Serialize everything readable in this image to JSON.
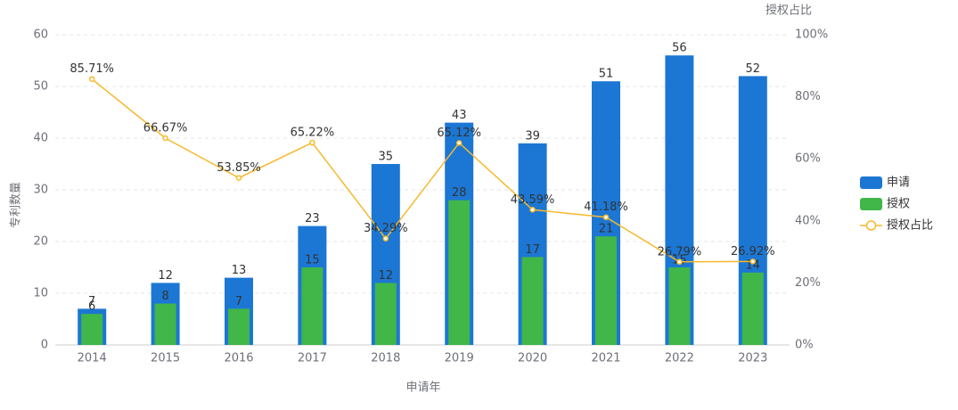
{
  "chart_data": {
    "type": "bar",
    "x_label": "申请年",
    "y_label": "专利数量",
    "y2_label": "授权占比",
    "categories": [
      "2014",
      "2015",
      "2016",
      "2017",
      "2018",
      "2019",
      "2020",
      "2021",
      "2022",
      "2023"
    ],
    "series": [
      {
        "name": "申请",
        "type": "bar",
        "color": "#1c77d4",
        "values": [
          7,
          12,
          13,
          23,
          35,
          43,
          39,
          51,
          56,
          52
        ]
      },
      {
        "name": "授权",
        "type": "bar",
        "color": "#41b649",
        "values": [
          6,
          8,
          7,
          15,
          12,
          28,
          17,
          21,
          15,
          14
        ]
      },
      {
        "name": "授权占比",
        "type": "line",
        "axis": "y2",
        "color": "#f6b92b",
        "values": [
          85.71,
          66.67,
          53.85,
          65.22,
          34.29,
          65.12,
          43.59,
          41.18,
          26.79,
          26.92
        ],
        "value_labels": [
          "85.71%",
          "66.67%",
          "53.85%",
          "65.22%",
          "34.29%",
          "65.12%",
          "43.59%",
          "41.18%",
          "26.79%",
          "26.92%"
        ]
      }
    ],
    "ylim": [
      0,
      60
    ],
    "yticks": [
      0,
      10,
      20,
      30,
      40,
      50,
      60
    ],
    "y2lim": [
      0,
      100
    ],
    "y2ticks": [
      {
        "value": 0,
        "label": "0%"
      },
      {
        "value": 20,
        "label": "20%"
      },
      {
        "value": 40,
        "label": "40%"
      },
      {
        "value": 60,
        "label": "60%"
      },
      {
        "value": 80,
        "label": "80%"
      },
      {
        "value": 100,
        "label": "100%"
      }
    ],
    "grid": true,
    "legend": "right"
  }
}
